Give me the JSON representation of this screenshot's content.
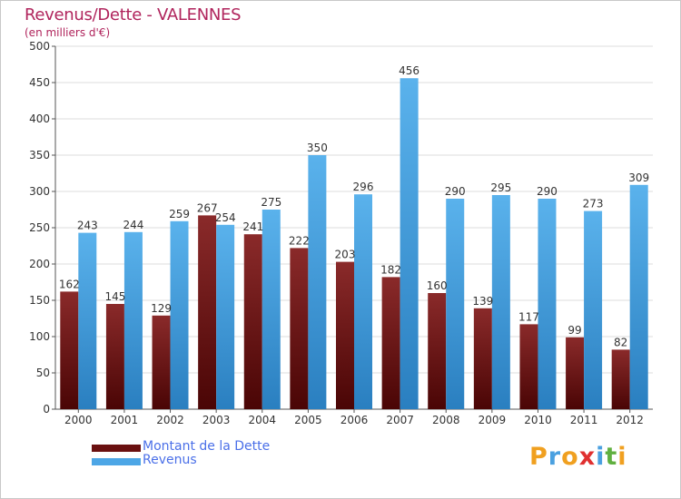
{
  "chart_data": {
    "type": "bar",
    "title": "Revenus/Dette - VALENNES",
    "subtitle": "(en milliers d'€)",
    "categories": [
      "2000",
      "2001",
      "2002",
      "2003",
      "2004",
      "2005",
      "2006",
      "2007",
      "2008",
      "2009",
      "2010",
      "2011",
      "2012"
    ],
    "series": [
      {
        "name": "Montant de la Dette",
        "color": "#7a1a1a",
        "values": [
          162,
          145,
          129,
          267,
          241,
          222,
          203,
          182,
          160,
          139,
          117,
          99,
          82
        ]
      },
      {
        "name": "Revenus",
        "color": "#4da6e6",
        "values": [
          243,
          244,
          259,
          254,
          275,
          350,
          296,
          456,
          290,
          295,
          290,
          273,
          309
        ]
      }
    ],
    "ylim": [
      0,
      500
    ],
    "yticks": [
      0,
      50,
      100,
      150,
      200,
      250,
      300,
      350,
      400,
      450,
      500
    ],
    "xlabel": "",
    "ylabel": "",
    "grid": true
  },
  "logo": {
    "text": "Proxiti",
    "colors": [
      "#f0a020",
      "#4aa0e0",
      "#f0a020",
      "#e03030",
      "#4aa0e0",
      "#60b040",
      "#f0a020"
    ]
  }
}
